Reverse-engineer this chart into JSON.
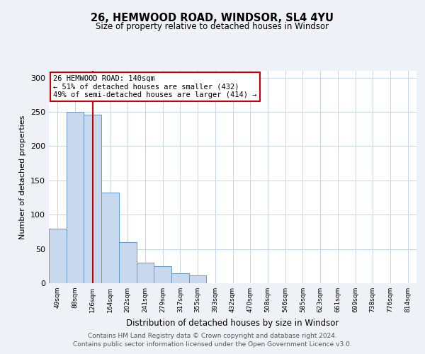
{
  "title": "26, HEMWOOD ROAD, WINDSOR, SL4 4YU",
  "subtitle": "Size of property relative to detached houses in Windsor",
  "xlabel": "Distribution of detached houses by size in Windsor",
  "ylabel": "Number of detached properties",
  "bar_labels": [
    "49sqm",
    "88sqm",
    "126sqm",
    "164sqm",
    "202sqm",
    "241sqm",
    "279sqm",
    "317sqm",
    "355sqm",
    "393sqm",
    "432sqm",
    "470sqm",
    "508sqm",
    "546sqm",
    "585sqm",
    "623sqm",
    "661sqm",
    "699sqm",
    "738sqm",
    "776sqm",
    "814sqm"
  ],
  "bar_heights": [
    80,
    250,
    246,
    132,
    60,
    30,
    25,
    14,
    11,
    0,
    0,
    0,
    0,
    0,
    0,
    0,
    0,
    0,
    0,
    0,
    0
  ],
  "bar_color": "#c8d9ee",
  "bar_edgecolor": "#6699cc",
  "vline_x": 2.0,
  "vline_color": "#cc0000",
  "annotation_text": "26 HEMWOOD ROAD: 140sqm\n← 51% of detached houses are smaller (432)\n49% of semi-detached houses are larger (414) →",
  "annotation_box_edgecolor": "#cc0000",
  "ylim": [
    0,
    310
  ],
  "yticks": [
    0,
    50,
    100,
    150,
    200,
    250,
    300
  ],
  "background_color": "#eef2f7",
  "plot_background": "#ffffff",
  "grid_color": "#c8d4e8",
  "footer_line1": "Contains HM Land Registry data © Crown copyright and database right 2024.",
  "footer_line2": "Contains public sector information licensed under the Open Government Licence v3.0."
}
